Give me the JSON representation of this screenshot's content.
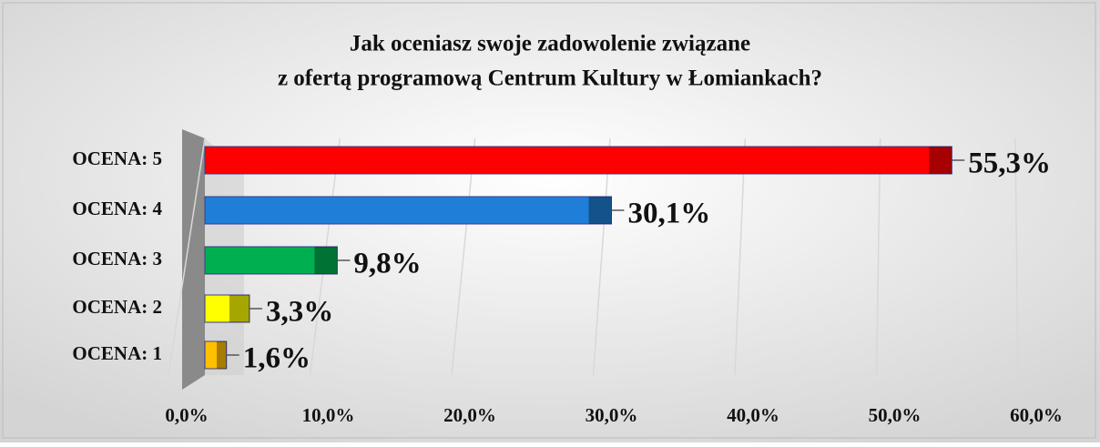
{
  "chart_data": {
    "type": "bar",
    "orientation": "horizontal",
    "title": [
      "Jak oceniasz swoje zadowolenie związane",
      "z ofertą programową Centrum Kultury w Łomiankach?"
    ],
    "categories": [
      "OCENA: 5",
      "OCENA: 4",
      "OCENA: 3",
      "OCENA: 2",
      "OCENA: 1"
    ],
    "values": [
      55.3,
      30.1,
      9.8,
      3.3,
      1.6
    ],
    "value_labels": [
      "55,3%",
      "30,1%",
      "9,8%",
      "3,3%",
      "1,6%"
    ],
    "colors": [
      "#ff0000",
      "#1f7fd8",
      "#00b050",
      "#ffff00",
      "#ffc000"
    ],
    "xlim": [
      0,
      60
    ],
    "xticks": [
      {
        "value": 0,
        "label": "0,0%"
      },
      {
        "value": 10,
        "label": "10,0%"
      },
      {
        "value": 20,
        "label": "20,0%"
      },
      {
        "value": 30,
        "label": "30,0%"
      },
      {
        "value": 40,
        "label": "40,0%"
      },
      {
        "value": 50,
        "label": "50,0%"
      },
      {
        "value": 60,
        "label": "60,0%"
      }
    ],
    "grid": true
  }
}
